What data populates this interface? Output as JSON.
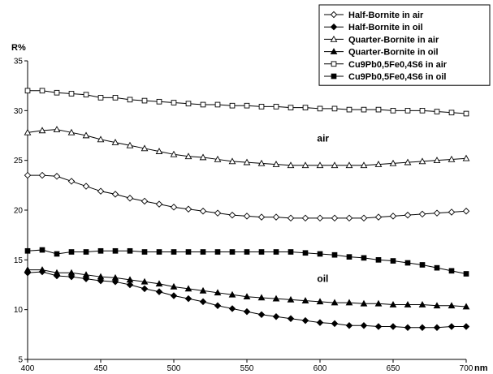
{
  "chart_data": {
    "type": "line",
    "ylabel": "R%",
    "xlabel": "nm",
    "xlim": [
      400,
      700
    ],
    "ylim": [
      5,
      35
    ],
    "x_ticks": [
      400,
      450,
      500,
      550,
      600,
      650,
      700
    ],
    "y_ticks": [
      5,
      10,
      15,
      20,
      25,
      30,
      35
    ],
    "grid": false,
    "legend_position": "top-right",
    "annotations": [
      {
        "text": "air",
        "x": 598,
        "y": 26.9
      },
      {
        "text": "oil",
        "x": 598,
        "y": 12.8
      }
    ],
    "x": [
      400,
      410,
      420,
      430,
      440,
      450,
      460,
      470,
      480,
      490,
      500,
      510,
      520,
      530,
      540,
      550,
      560,
      570,
      580,
      590,
      600,
      610,
      620,
      630,
      640,
      650,
      660,
      670,
      680,
      690,
      700
    ],
    "series": [
      {
        "name": "Half-Bornite in air",
        "marker": "diamond-open",
        "values": [
          23.5,
          23.5,
          23.4,
          22.9,
          22.4,
          21.9,
          21.6,
          21.2,
          20.9,
          20.6,
          20.3,
          20.1,
          19.9,
          19.7,
          19.5,
          19.4,
          19.3,
          19.3,
          19.2,
          19.2,
          19.2,
          19.2,
          19.2,
          19.2,
          19.3,
          19.4,
          19.5,
          19.6,
          19.7,
          19.8,
          19.9
        ]
      },
      {
        "name": "Half-Bornite in oil",
        "marker": "diamond-filled",
        "values": [
          13.7,
          13.8,
          13.4,
          13.3,
          13.1,
          12.9,
          12.8,
          12.5,
          12.1,
          11.8,
          11.4,
          11.1,
          10.8,
          10.4,
          10.1,
          9.8,
          9.5,
          9.3,
          9.1,
          8.9,
          8.7,
          8.6,
          8.4,
          8.4,
          8.3,
          8.3,
          8.2,
          8.2,
          8.2,
          8.3,
          8.3
        ]
      },
      {
        "name": "Quarter-Bornite in air",
        "marker": "triangle-open",
        "values": [
          27.8,
          28.0,
          28.1,
          27.8,
          27.5,
          27.1,
          26.8,
          26.5,
          26.2,
          25.9,
          25.6,
          25.4,
          25.3,
          25.1,
          24.9,
          24.8,
          24.7,
          24.6,
          24.5,
          24.5,
          24.5,
          24.5,
          24.5,
          24.5,
          24.6,
          24.7,
          24.8,
          24.9,
          25.0,
          25.1,
          25.2
        ]
      },
      {
        "name": "Quarter-Bornite in oil",
        "marker": "triangle-filled",
        "values": [
          14.0,
          14.0,
          13.7,
          13.7,
          13.5,
          13.3,
          13.2,
          13.0,
          12.8,
          12.6,
          12.3,
          12.1,
          11.9,
          11.7,
          11.5,
          11.3,
          11.2,
          11.1,
          11.0,
          10.9,
          10.8,
          10.7,
          10.7,
          10.6,
          10.6,
          10.5,
          10.5,
          10.5,
          10.4,
          10.4,
          10.3
        ]
      },
      {
        "name": "Cu9Pb0,5Fe0,4S6 in air",
        "marker": "square-open",
        "values": [
          32.0,
          32.0,
          31.8,
          31.7,
          31.6,
          31.3,
          31.3,
          31.1,
          31.0,
          30.9,
          30.8,
          30.7,
          30.6,
          30.6,
          30.5,
          30.5,
          30.4,
          30.4,
          30.3,
          30.3,
          30.2,
          30.2,
          30.1,
          30.1,
          30.1,
          30.0,
          30.0,
          30.0,
          29.9,
          29.8,
          29.7
        ]
      },
      {
        "name": "Cu9Pb0,5Fe0,4S6 in oil",
        "marker": "square-filled",
        "values": [
          15.9,
          16.0,
          15.6,
          15.8,
          15.8,
          15.9,
          15.9,
          15.9,
          15.8,
          15.8,
          15.8,
          15.8,
          15.8,
          15.8,
          15.8,
          15.8,
          15.8,
          15.8,
          15.8,
          15.7,
          15.6,
          15.5,
          15.3,
          15.2,
          15.0,
          14.9,
          14.7,
          14.5,
          14.2,
          13.9,
          13.6
        ]
      }
    ]
  }
}
